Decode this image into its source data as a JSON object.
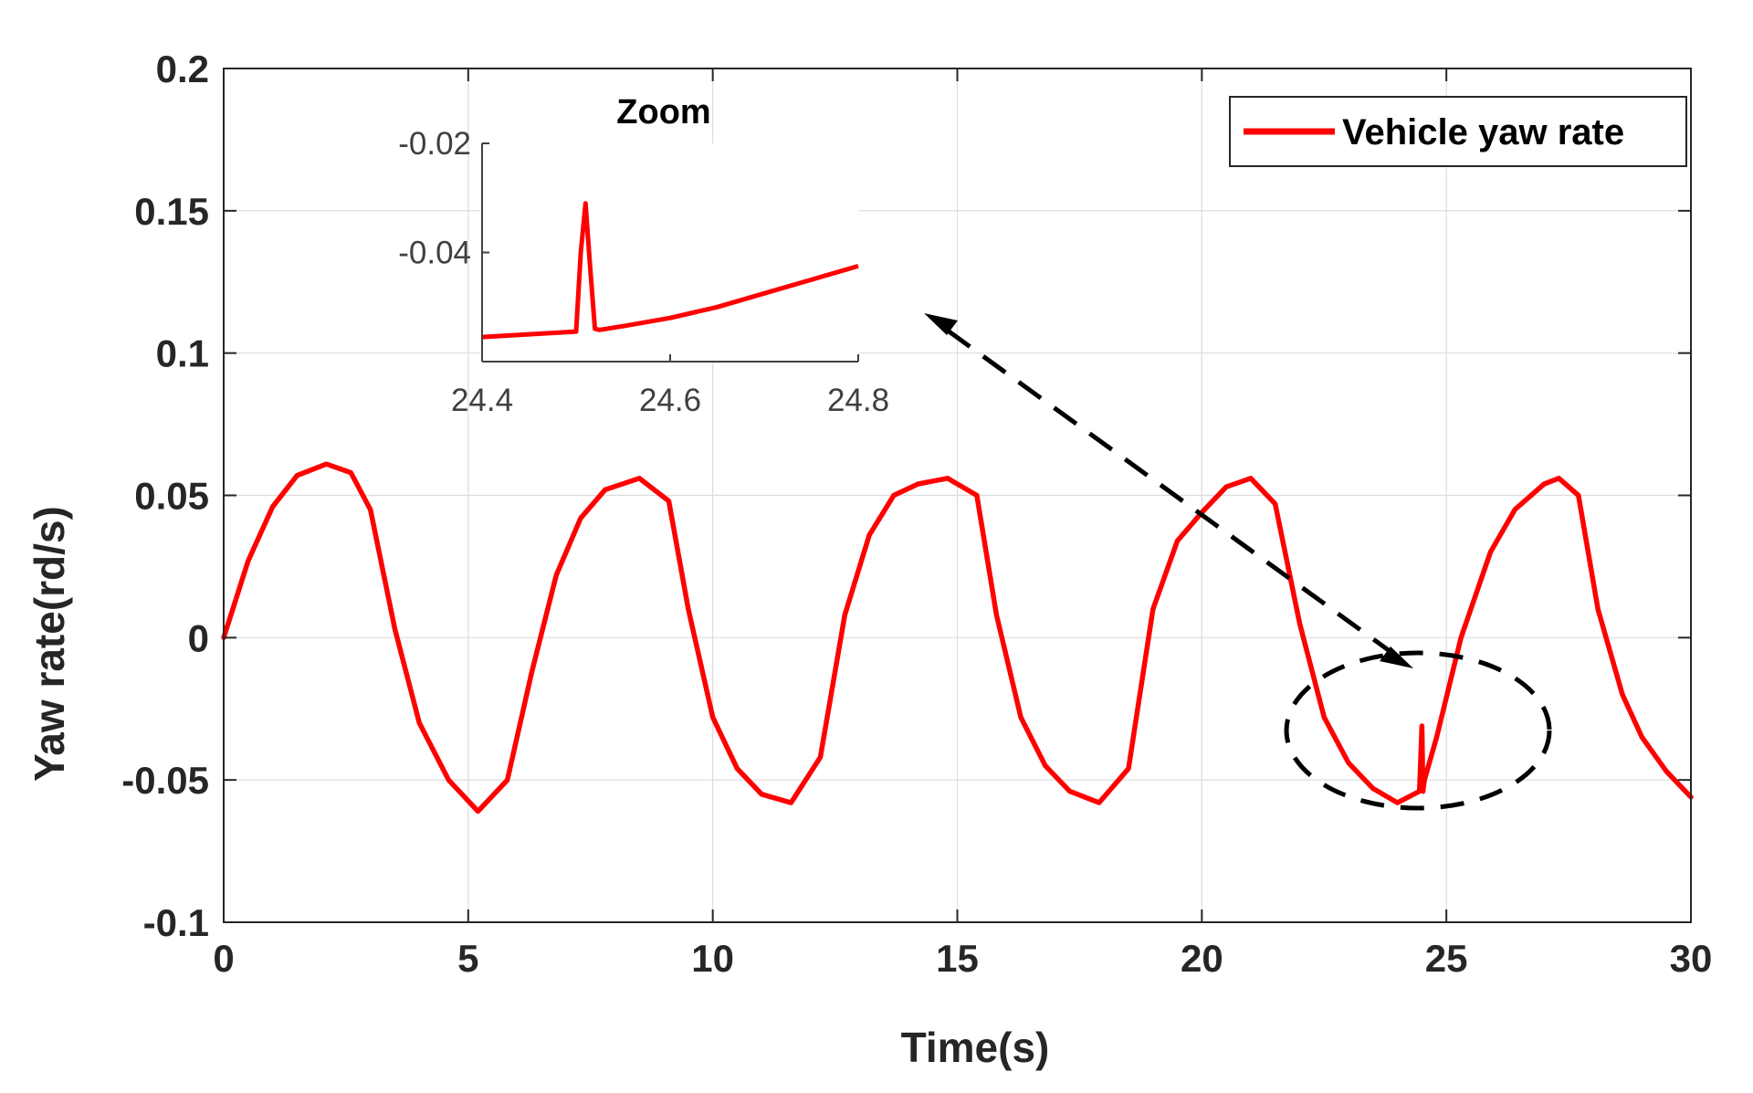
{
  "chart_data": [
    {
      "type": "line",
      "role": "main",
      "xlabel": "Time(s)",
      "ylabel": "Yaw rate(rd/s)",
      "xlim": [
        0,
        30
      ],
      "ylim": [
        -0.1,
        0.2
      ],
      "xticks": [
        0,
        5,
        10,
        15,
        20,
        25,
        30
      ],
      "xtick_labels": [
        "0",
        "5",
        "10",
        "15",
        "20",
        "25",
        "30"
      ],
      "yticks": [
        -0.1,
        -0.05,
        0,
        0.05,
        0.1,
        0.15,
        0.2
      ],
      "ytick_labels": [
        "-0.1",
        "-0.05",
        "0",
        "0.05",
        "0.1",
        "0.15",
        "0.2"
      ],
      "grid": true,
      "legend_position": "top-right",
      "series": [
        {
          "name": "Vehicle yaw rate",
          "color": "#ff0000",
          "x": [
            0,
            0.5,
            1.0,
            1.5,
            2.1,
            2.6,
            3.0,
            3.5,
            4.0,
            4.6,
            5.2,
            5.8,
            6.3,
            6.8,
            7.3,
            7.8,
            8.5,
            9.1,
            9.5,
            10.0,
            10.5,
            11.0,
            11.6,
            12.2,
            12.7,
            13.2,
            13.7,
            14.2,
            14.8,
            15.4,
            15.8,
            16.3,
            16.8,
            17.3,
            17.9,
            18.5,
            19.0,
            19.5,
            20.0,
            20.5,
            21.0,
            21.5,
            22.0,
            22.5,
            23.0,
            23.5,
            24.0,
            24.45,
            24.5,
            24.52,
            24.55,
            24.8,
            25.3,
            25.9,
            26.4,
            27.0,
            27.3,
            27.7,
            28.1,
            28.6,
            29.0,
            29.5,
            30.0
          ],
          "y": [
            0,
            0.027,
            0.046,
            0.057,
            0.061,
            0.058,
            0.045,
            0.003,
            -0.03,
            -0.05,
            -0.061,
            -0.05,
            -0.012,
            0.022,
            0.042,
            0.052,
            0.056,
            0.048,
            0.01,
            -0.028,
            -0.046,
            -0.055,
            -0.058,
            -0.042,
            0.008,
            0.036,
            0.05,
            0.054,
            0.056,
            0.05,
            0.008,
            -0.028,
            -0.045,
            -0.054,
            -0.058,
            -0.046,
            0.01,
            0.034,
            0.044,
            0.053,
            0.056,
            0.047,
            0.005,
            -0.028,
            -0.044,
            -0.053,
            -0.058,
            -0.054,
            -0.031,
            -0.054,
            -0.05,
            -0.035,
            0.0,
            0.03,
            0.045,
            0.054,
            0.056,
            0.05,
            0.01,
            -0.02,
            -0.035,
            -0.047,
            -0.056
          ]
        }
      ]
    },
    {
      "type": "line",
      "role": "inset",
      "title": "Zoom",
      "xlim": [
        24.4,
        24.8
      ],
      "ylim": [
        -0.06,
        -0.02
      ],
      "xticks": [
        24.4,
        24.6,
        24.8
      ],
      "xtick_labels": [
        "24.4",
        "24.6",
        "24.8"
      ],
      "yticks": [
        -0.04,
        -0.02
      ],
      "ytick_labels": [
        "-0.04",
        "-0.02"
      ],
      "series": [
        {
          "name": "Vehicle yaw rate",
          "color": "#ff0000",
          "x": [
            24.4,
            24.45,
            24.5,
            24.505,
            24.51,
            24.515,
            24.52,
            24.525,
            24.55,
            24.6,
            24.65,
            24.7,
            24.75,
            24.8
          ],
          "y": [
            -0.0555,
            -0.055,
            -0.0545,
            -0.04,
            -0.031,
            -0.043,
            -0.054,
            -0.0542,
            -0.0535,
            -0.052,
            -0.05,
            -0.0475,
            -0.045,
            -0.0425
          ]
        }
      ]
    }
  ]
}
